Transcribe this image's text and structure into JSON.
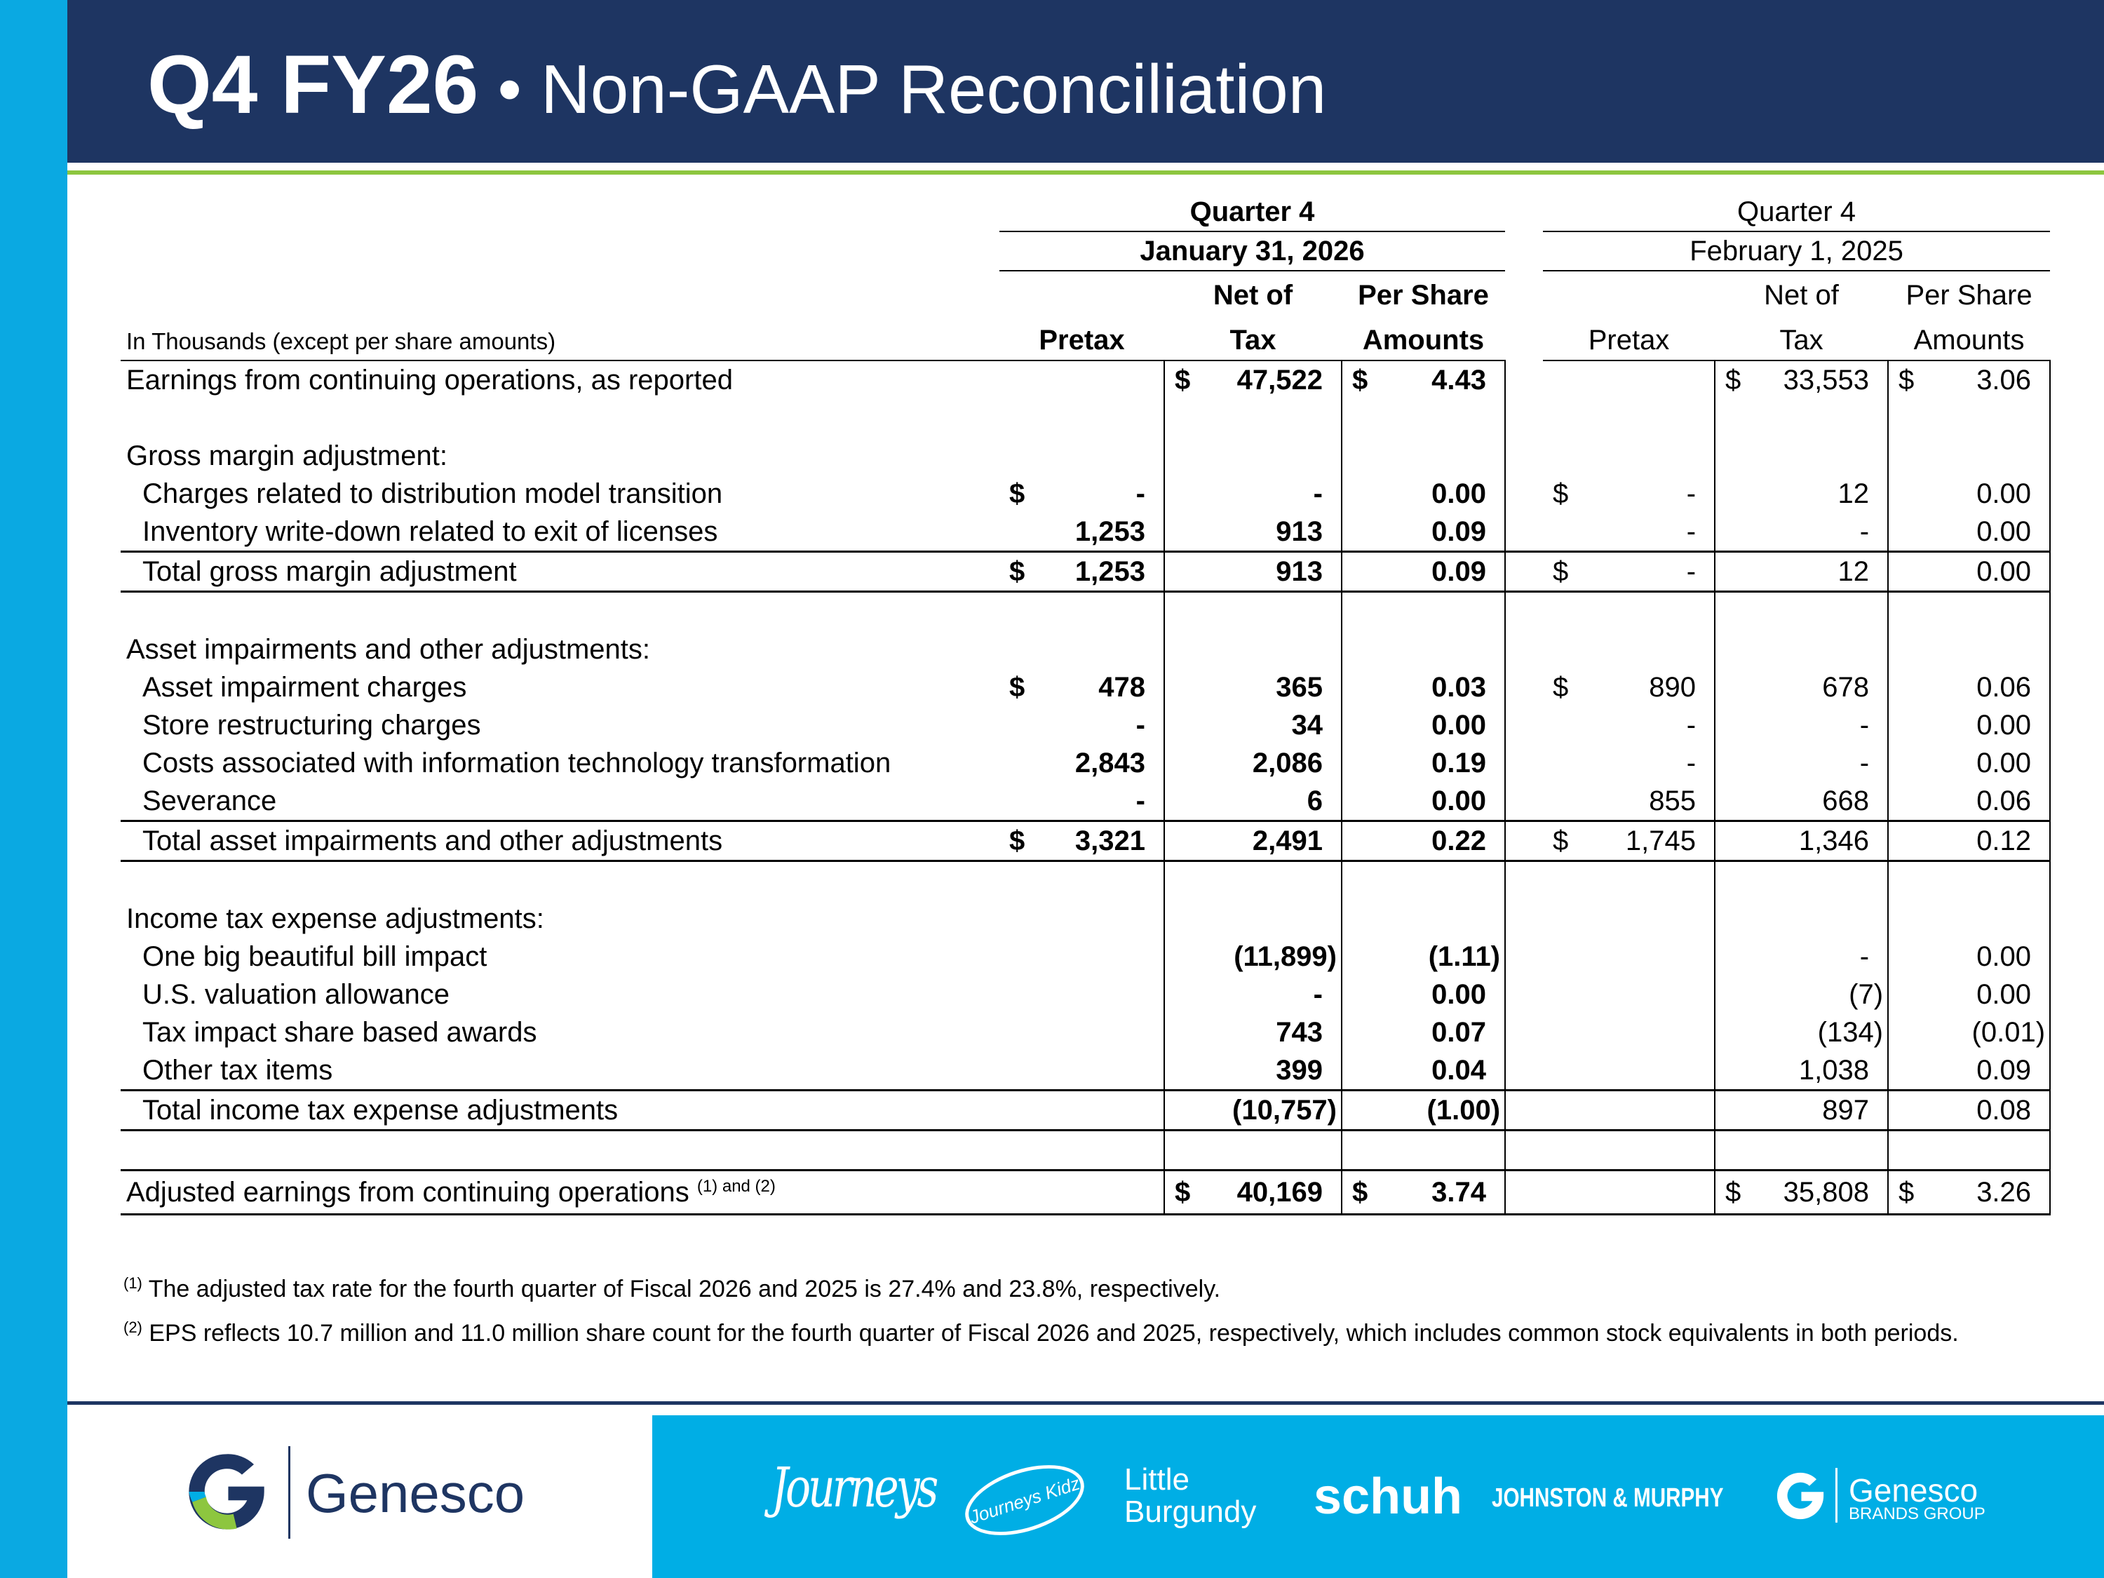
{
  "header": {
    "title_bold": "Q4 FY26",
    "title_rest": " • Non-GAAP Reconciliation"
  },
  "table": {
    "groups": [
      {
        "period": "Quarter 4",
        "date": "January 31, 2026",
        "bold": true
      },
      {
        "period": "Quarter 4",
        "date": "February 1, 2025",
        "bold": false
      }
    ],
    "col_top": [
      "",
      "Net of",
      "Per Share"
    ],
    "col_bottom": [
      "Pretax",
      "Tax",
      "Amounts"
    ],
    "units_label": "In Thousands (except per share amounts)",
    "rows": [
      {
        "type": "reported",
        "label": "Earnings from continuing operations, as reported",
        "cells": [
          "",
          [
            "$",
            "47,522"
          ],
          [
            "$",
            "4.43"
          ],
          "",
          [
            "$",
            "33,553"
          ],
          [
            "$",
            "3.06"
          ]
        ]
      },
      {
        "type": "blank"
      },
      {
        "type": "section",
        "label": "Gross margin adjustment:"
      },
      {
        "type": "item",
        "label": "Charges related to distribution model transition",
        "cells": [
          [
            "$",
            "-"
          ],
          "-",
          "0.00",
          [
            "$",
            "-"
          ],
          "12",
          "0.00"
        ]
      },
      {
        "type": "item",
        "label": "Inventory write-down related to exit of licenses",
        "cells": [
          "1,253",
          "913",
          "0.09",
          "-",
          "-",
          "0.00"
        ]
      },
      {
        "type": "total",
        "label": "Total gross margin adjustment",
        "cells": [
          [
            "$",
            "1,253"
          ],
          "913",
          "0.09",
          [
            "$",
            "-"
          ],
          "12",
          "0.00"
        ]
      },
      {
        "type": "blank"
      },
      {
        "type": "section",
        "label": "Asset impairments and other adjustments:"
      },
      {
        "type": "item",
        "label": "Asset impairment charges",
        "cells": [
          [
            "$",
            "478"
          ],
          "365",
          "0.03",
          [
            "$",
            "890"
          ],
          "678",
          "0.06"
        ]
      },
      {
        "type": "item",
        "label": "Store restructuring charges",
        "cells": [
          "-",
          "34",
          "0.00",
          "-",
          "-",
          "0.00"
        ]
      },
      {
        "type": "item",
        "label": "Costs associated with information technology transformation",
        "cells": [
          "2,843",
          "2,086",
          "0.19",
          "-",
          "-",
          "0.00"
        ]
      },
      {
        "type": "item",
        "label": "Severance",
        "cells": [
          "-",
          "6",
          "0.00",
          "855",
          "668",
          "0.06"
        ]
      },
      {
        "type": "total",
        "label": "Total asset impairments and other adjustments",
        "cells": [
          [
            "$",
            "3,321"
          ],
          "2,491",
          "0.22",
          [
            "$",
            "1,745"
          ],
          "1,346",
          "0.12"
        ]
      },
      {
        "type": "blank"
      },
      {
        "type": "section",
        "label": "Income tax expense adjustments:"
      },
      {
        "type": "item",
        "label": "One big beautiful bill impact",
        "cells": [
          "",
          "(11,899)",
          "(1.11)",
          "",
          "-",
          "0.00"
        ]
      },
      {
        "type": "item",
        "label": "U.S. valuation allowance",
        "cells": [
          "",
          "-",
          "0.00",
          "",
          "(7)",
          "0.00"
        ]
      },
      {
        "type": "item",
        "label": "Tax impact share based awards",
        "cells": [
          "",
          "743",
          "0.07",
          "",
          "(134)",
          "(0.01)"
        ]
      },
      {
        "type": "item",
        "label": "Other tax items",
        "cells": [
          "",
          "399",
          "0.04",
          "",
          "1,038",
          "0.09"
        ]
      },
      {
        "type": "total",
        "label": "Total income tax expense adjustments",
        "cells": [
          "",
          "(10,757)",
          "(1.00)",
          "",
          "897",
          "0.08"
        ]
      },
      {
        "type": "spacer"
      },
      {
        "type": "final",
        "label": "Adjusted earnings from continuing operations",
        "sup": "(1) and (2)",
        "cells": [
          "",
          [
            "$",
            "40,169"
          ],
          [
            "$",
            "3.74"
          ],
          "",
          [
            "$",
            "35,808"
          ],
          [
            "$",
            "3.26"
          ]
        ]
      }
    ]
  },
  "footnotes": [
    {
      "mark": "(1)",
      "text": "The adjusted tax rate for the fourth quarter of Fiscal 2026 and 2025 is 27.4% and 23.8%, respectively."
    },
    {
      "mark": "(2)",
      "text": "EPS reflects 10.7 million and 11.0 million share count for the fourth quarter of Fiscal 2026 and 2025, respectively, which includes common stock equivalents in both periods."
    }
  ],
  "footer": {
    "company": "Genesco",
    "brands": [
      "Journeys",
      "Journeys Kidz",
      "Little",
      "Burgundy",
      "schuh",
      "JOHNSTON & MURPHY",
      "Genesco",
      "BRANDS GROUP"
    ],
    "colors": {
      "navy": "#1e3562",
      "blue": "#00aee5",
      "green": "#8dc63f"
    }
  }
}
